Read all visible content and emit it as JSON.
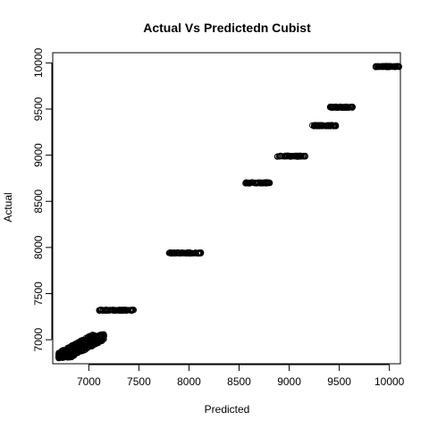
{
  "chart_data": {
    "type": "scatter",
    "title": "Actual Vs Predictedn Cubist",
    "xlabel": "Predicted",
    "ylabel": "Actual",
    "xlim": [
      6640,
      10110
    ],
    "ylim": [
      6740,
      10110
    ],
    "x_ticks": [
      7000,
      7500,
      8000,
      8500,
      9000,
      9500,
      10000
    ],
    "y_ticks": [
      7000,
      7500,
      8000,
      8500,
      9000,
      9500,
      10000
    ],
    "grid": false,
    "legend": "none",
    "marker": "open-circle",
    "point_color": "#000000",
    "clusters": [
      {
        "actual_range": [
          6800,
          7060
        ],
        "predicted_range": [
          6700,
          7150
        ],
        "n": 420
      },
      {
        "actual": 7320,
        "predicted_range": [
          7100,
          7450
        ],
        "n": 90
      },
      {
        "actual": 7940,
        "predicted_range": [
          7800,
          8130
        ],
        "n": 90
      },
      {
        "actual": 8700,
        "predicted_range": [
          8560,
          8810
        ],
        "n": 70
      },
      {
        "actual": 8990,
        "predicted_range": [
          8880,
          9160
        ],
        "n": 70
      },
      {
        "actual": 9320,
        "predicted_range": [
          9220,
          9470
        ],
        "n": 70
      },
      {
        "actual": 9520,
        "predicted_range": [
          9400,
          9640
        ],
        "n": 70
      },
      {
        "actual": 9960,
        "predicted_range": [
          9860,
          10100
        ],
        "n": 80
      }
    ]
  }
}
